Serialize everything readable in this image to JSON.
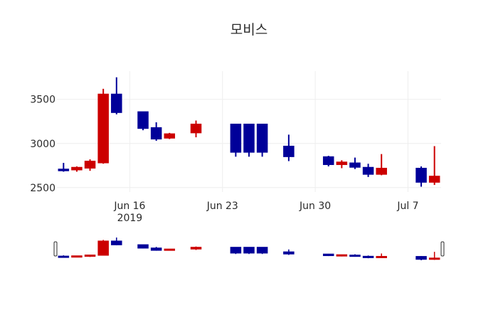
{
  "chart_data": {
    "type": "candlestick",
    "title": "모비스",
    "xlabel": "",
    "ylabel": "",
    "ylim": [
      2450,
      3820
    ],
    "xlim": [
      "2019-06-11",
      "2019-07-09"
    ],
    "y_ticks": [
      2500,
      3000,
      3500
    ],
    "x_ticks": [
      {
        "date": "2019-06-16",
        "label": "Jun 16",
        "sublabel": "2019"
      },
      {
        "date": "2019-06-23",
        "label": "Jun 23",
        "sublabel": ""
      },
      {
        "date": "2019-06-30",
        "label": "Jun 30",
        "sublabel": ""
      },
      {
        "date": "2019-07-07",
        "label": "Jul 7",
        "sublabel": ""
      }
    ],
    "grid": true,
    "rangeslider": true,
    "colors": {
      "increasing": "#cc0000",
      "decreasing": "#000099",
      "grid": "#eeeeee"
    },
    "series": [
      {
        "date": "2019-06-11",
        "open": 2710,
        "high": 2780,
        "low": 2680,
        "close": 2690
      },
      {
        "date": "2019-06-12",
        "open": 2700,
        "high": 2740,
        "low": 2680,
        "close": 2730
      },
      {
        "date": "2019-06-13",
        "open": 2720,
        "high": 2820,
        "low": 2690,
        "close": 2800
      },
      {
        "date": "2019-06-14",
        "open": 2780,
        "high": 3620,
        "low": 2770,
        "close": 3560
      },
      {
        "date": "2019-06-15",
        "open": 3560,
        "high": 3750,
        "low": 3330,
        "close": 3350
      },
      {
        "date": "2019-06-17",
        "open": 3360,
        "high": 3360,
        "low": 3150,
        "close": 3170
      },
      {
        "date": "2019-06-18",
        "open": 3180,
        "high": 3240,
        "low": 3030,
        "close": 3050
      },
      {
        "date": "2019-06-19",
        "open": 3060,
        "high": 3120,
        "low": 3050,
        "close": 3110
      },
      {
        "date": "2019-06-21",
        "open": 3120,
        "high": 3260,
        "low": 3070,
        "close": 3220
      },
      {
        "date": "2019-06-24",
        "open": 3220,
        "high": 3220,
        "low": 2850,
        "close": 2900
      },
      {
        "date": "2019-06-25",
        "open": 3220,
        "high": 3220,
        "low": 2850,
        "close": 2900
      },
      {
        "date": "2019-06-26",
        "open": 3220,
        "high": 3220,
        "low": 2850,
        "close": 2900
      },
      {
        "date": "2019-06-28",
        "open": 2970,
        "high": 3100,
        "low": 2800,
        "close": 2850
      },
      {
        "date": "2019-07-01",
        "open": 2850,
        "high": 2860,
        "low": 2740,
        "close": 2760
      },
      {
        "date": "2019-07-02",
        "open": 2760,
        "high": 2810,
        "low": 2720,
        "close": 2790
      },
      {
        "date": "2019-07-03",
        "open": 2780,
        "high": 2840,
        "low": 2710,
        "close": 2730
      },
      {
        "date": "2019-07-04",
        "open": 2730,
        "high": 2770,
        "low": 2620,
        "close": 2650
      },
      {
        "date": "2019-07-05",
        "open": 2650,
        "high": 2880,
        "low": 2640,
        "close": 2720
      },
      {
        "date": "2019-07-08",
        "open": 2720,
        "high": 2740,
        "low": 2510,
        "close": 2560
      },
      {
        "date": "2019-07-09",
        "open": 2560,
        "high": 2970,
        "low": 2530,
        "close": 2630
      }
    ]
  }
}
